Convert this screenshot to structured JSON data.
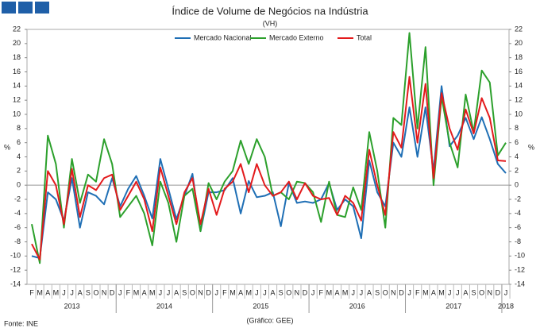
{
  "chart_data": {
    "type": "line",
    "title": "Índice de Volume  de Negócios na Indústria",
    "subtitle": "(VH)",
    "y_label": "%",
    "y2_label": "%",
    "source": "Fonte: INE",
    "credit": "(Gráfico: GEE)",
    "categories": [
      "F",
      "M",
      "A",
      "M",
      "J",
      "J",
      "A",
      "S",
      "O",
      "N",
      "D",
      "J",
      "F",
      "M",
      "A",
      "M",
      "J",
      "J",
      "A",
      "S",
      "O",
      "N",
      "D",
      "J",
      "F",
      "M",
      "A",
      "M",
      "J",
      "J",
      "A",
      "S",
      "O",
      "N",
      "D",
      "J",
      "F",
      "M",
      "A",
      "M",
      "J",
      "J",
      "A",
      "S",
      "O",
      "N",
      "D",
      "J",
      "F",
      "M",
      "A",
      "M",
      "J",
      "J",
      "A",
      "S",
      "O",
      "N",
      "D",
      "J"
    ],
    "years": [
      "2013",
      "2014",
      "2015",
      "2016",
      "2017",
      "2018"
    ],
    "ylim": [
      -14,
      22
    ],
    "yticks": [
      -14,
      -12,
      -10,
      -8,
      -6,
      -4,
      -2,
      0,
      2,
      4,
      6,
      8,
      10,
      12,
      14,
      16,
      18,
      20,
      22
    ],
    "y2lim": [
      -14,
      22
    ],
    "y2ticks": [
      -14,
      -12,
      -10,
      -8,
      -6,
      -4,
      -2,
      0,
      2,
      4,
      6,
      8,
      10,
      12,
      14,
      16,
      18,
      20,
      22
    ],
    "legend": "top",
    "series": [
      {
        "name": "Mercado Nacional",
        "color": "#1f6fb5",
        "values": [
          -10,
          -10.3,
          -1,
          -2,
          -5,
          1,
          -6,
          -1,
          -1.5,
          -2.7,
          1,
          -3,
          -0.5,
          1.3,
          -1.5,
          -4.7,
          3.7,
          -0.5,
          -4.8,
          -1.5,
          1.6,
          -6.5,
          -1,
          -1,
          -0.7,
          1,
          -4,
          0.6,
          -1.7,
          -1.5,
          -1,
          -5.8,
          0.3,
          -2.5,
          -2.3,
          -2.5,
          -2,
          0.3,
          -3.5,
          -2,
          -3,
          -7.5,
          3.5,
          -1,
          -3,
          6,
          4,
          11,
          4,
          11,
          2,
          14,
          5.5,
          7,
          9.5,
          6.5,
          9.6,
          6.5,
          3,
          1.7
        ]
      },
      {
        "name": "Mercado Externo",
        "color": "#2ca02c",
        "values": [
          -5.5,
          -11,
          7,
          3,
          -6,
          3.7,
          -2.5,
          1.5,
          0.5,
          6.5,
          3,
          -4.5,
          -3,
          -1.5,
          -4,
          -8.5,
          0.5,
          -2.5,
          -8,
          -1.5,
          -0.5,
          -6.5,
          0.3,
          -2,
          0.5,
          2,
          6.3,
          3,
          6.5,
          4,
          -1.5,
          -1,
          -2,
          0.5,
          0.3,
          -1,
          -5.2,
          0.5,
          -4.2,
          -4.5,
          -0.3,
          -3.5,
          7.5,
          2,
          -6,
          9.5,
          8.5,
          21.5,
          8,
          19.5,
          0,
          12.5,
          6,
          2.5,
          12.8,
          7.5,
          16.2,
          14.5,
          4.2,
          6
        ]
      },
      {
        "name": "Total",
        "color": "#e31a1c",
        "values": [
          -8.3,
          -10.5,
          2,
          0,
          -5.5,
          2.3,
          -4.5,
          0,
          -0.7,
          1,
          1.5,
          -3.5,
          -1.5,
          0.5,
          -2,
          -6.5,
          2.5,
          -1.5,
          -5.5,
          -1,
          1,
          -5.5,
          -0.5,
          -4.2,
          -0.5,
          0.5,
          3,
          -1,
          3,
          0,
          -1.5,
          -1,
          0.5,
          -2,
          0.3,
          -1.5,
          -2,
          -1.8,
          -4.2,
          -1.5,
          -2.5,
          -5,
          5,
          0,
          -4.2,
          7.5,
          5.3,
          15.3,
          6,
          14.3,
          1,
          13,
          8,
          5,
          10.7,
          7.3,
          12.3,
          9.5,
          3.5,
          3.4
        ]
      }
    ]
  }
}
